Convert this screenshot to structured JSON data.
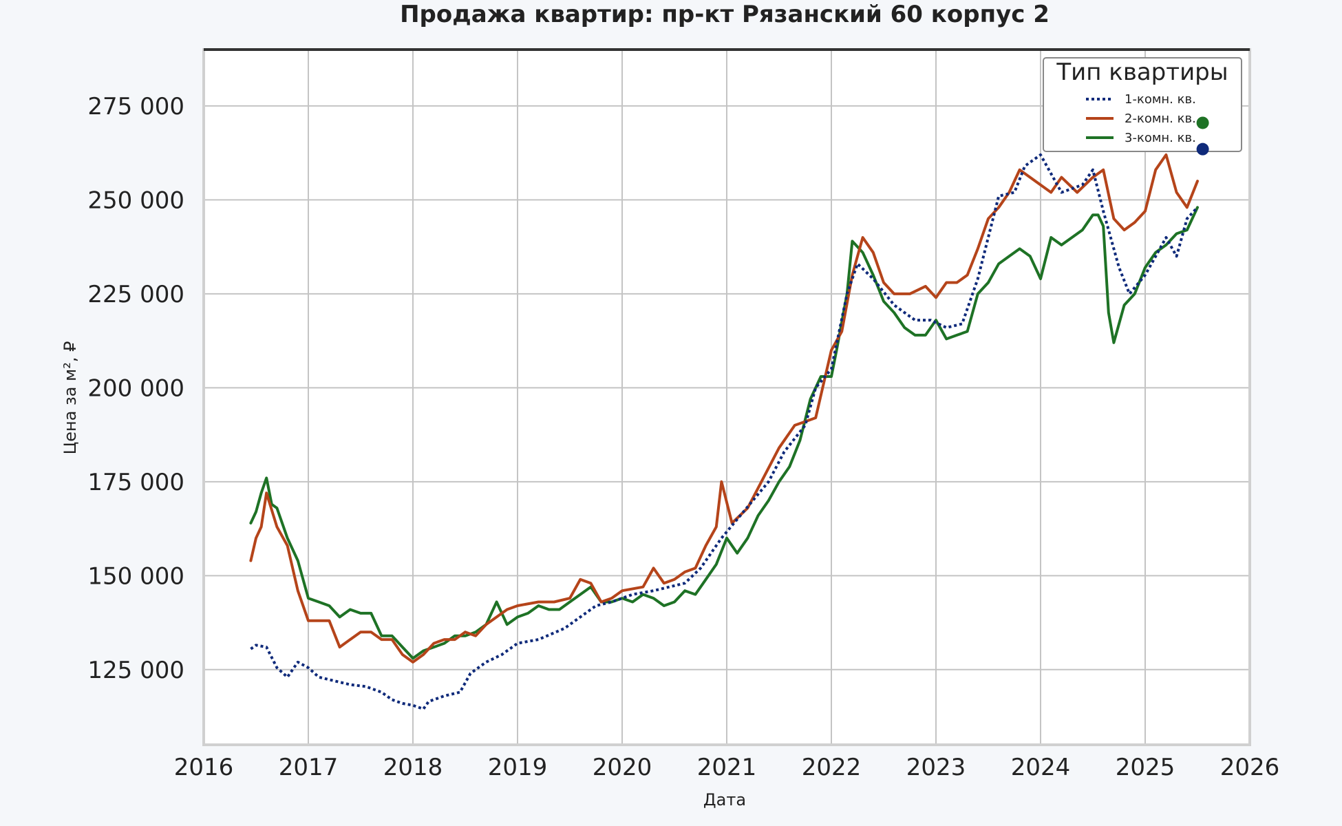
{
  "chart_data": {
    "type": "line",
    "title": "Продажа квартир: пр-кт Рязанский 60 корпус 2",
    "xlabel": "Дата",
    "ylabel": "Цена за м², ₽",
    "xlim": [
      2016,
      2026
    ],
    "ylim": [
      105000,
      290000
    ],
    "x_ticks": [
      "2016",
      "2017",
      "2018",
      "2019",
      "2020",
      "2021",
      "2022",
      "2023",
      "2024",
      "2025",
      "2026"
    ],
    "y_ticks": [
      "125 000",
      "150 000",
      "175 000",
      "200 000",
      "225 000",
      "250 000",
      "275 000"
    ],
    "grid": true,
    "legend": {
      "title": "Тип квартиры",
      "position": "top-right"
    },
    "series": [
      {
        "name": "1-комн. кв.",
        "color": "#0f2a7a",
        "style": "dotted",
        "x": [
          2016.45,
          2016.5,
          2016.6,
          2016.7,
          2016.8,
          2016.9,
          2017.0,
          2017.1,
          2017.25,
          2017.4,
          2017.55,
          2017.7,
          2017.8,
          2017.9,
          2018.0,
          2018.1,
          2018.15,
          2018.3,
          2018.45,
          2018.55,
          2018.7,
          2018.85,
          2019.0,
          2019.2,
          2019.45,
          2019.6,
          2019.75,
          2019.9,
          2020.1,
          2020.3,
          2020.45,
          2020.6,
          2020.75,
          2020.95,
          2021.1,
          2021.25,
          2021.4,
          2021.55,
          2021.75,
          2021.85,
          2022.0,
          2022.15,
          2022.25,
          2022.4,
          2022.6,
          2022.8,
          2022.95,
          2023.1,
          2023.25,
          2023.4,
          2023.6,
          2023.75,
          2023.85,
          2024.0,
          2024.2,
          2024.4,
          2024.5,
          2024.6,
          2024.75,
          2024.85,
          2025.0,
          2025.2,
          2025.3,
          2025.4,
          2025.5
        ],
        "y": [
          130500,
          131500,
          131000,
          125500,
          123000,
          127000,
          125500,
          123000,
          122000,
          121000,
          120500,
          119000,
          117000,
          116000,
          115500,
          114500,
          116500,
          118000,
          119000,
          124000,
          127000,
          129000,
          132000,
          133000,
          136000,
          139000,
          142000,
          143000,
          145000,
          146000,
          147000,
          148000,
          152000,
          160000,
          165000,
          170000,
          175000,
          183000,
          190000,
          200000,
          205000,
          225000,
          233000,
          229000,
          222000,
          218000,
          218000,
          216000,
          217000,
          229000,
          251000,
          252000,
          259000,
          262000,
          252000,
          254000,
          258000,
          247000,
          232000,
          225000,
          230000,
          240000,
          235000,
          245000,
          248000
        ]
      },
      {
        "name": "2-комн. кв.",
        "color": "#b5441a",
        "style": "solid",
        "x": [
          2016.45,
          2016.5,
          2016.55,
          2016.6,
          2016.7,
          2016.8,
          2016.9,
          2017.0,
          2017.2,
          2017.3,
          2017.4,
          2017.5,
          2017.6,
          2017.7,
          2017.8,
          2017.9,
          2018.0,
          2018.1,
          2018.2,
          2018.3,
          2018.4,
          2018.5,
          2018.6,
          2018.7,
          2018.8,
          2018.9,
          2019.0,
          2019.2,
          2019.35,
          2019.5,
          2019.6,
          2019.7,
          2019.8,
          2019.9,
          2020.0,
          2020.2,
          2020.3,
          2020.4,
          2020.5,
          2020.6,
          2020.7,
          2020.8,
          2020.9,
          2020.95,
          2021.05,
          2021.2,
          2021.35,
          2021.5,
          2021.65,
          2021.75,
          2021.85,
          2022.0,
          2022.1,
          2022.2,
          2022.3,
          2022.4,
          2022.5,
          2022.6,
          2022.75,
          2022.9,
          2023.0,
          2023.1,
          2023.2,
          2023.3,
          2023.4,
          2023.5,
          2023.6,
          2023.7,
          2023.8,
          2023.95,
          2024.1,
          2024.2,
          2024.35,
          2024.5,
          2024.6,
          2024.7,
          2024.8,
          2024.9,
          2025.0,
          2025.1,
          2025.2,
          2025.3,
          2025.4,
          2025.5
        ],
        "y": [
          154000,
          160000,
          163000,
          172000,
          163000,
          158000,
          146000,
          138000,
          138000,
          131000,
          133000,
          135000,
          135000,
          133000,
          133000,
          129000,
          127000,
          129000,
          132000,
          133000,
          133000,
          135000,
          134000,
          137000,
          139000,
          141000,
          142000,
          143000,
          143000,
          144000,
          149000,
          148000,
          143000,
          144000,
          146000,
          147000,
          152000,
          148000,
          149000,
          151000,
          152000,
          158000,
          163000,
          175000,
          164000,
          168000,
          176000,
          184000,
          190000,
          191000,
          192000,
          210000,
          215000,
          230000,
          240000,
          236000,
          228000,
          225000,
          225000,
          227000,
          224000,
          228000,
          228000,
          230000,
          237000,
          245000,
          248000,
          252000,
          258000,
          255000,
          252000,
          256000,
          252000,
          256000,
          258000,
          245000,
          242000,
          244000,
          247000,
          258000,
          262000,
          252000,
          248000,
          255000
        ]
      },
      {
        "name": "3-комн. кв.",
        "color": "#1e7225",
        "style": "solid",
        "x": [
          2016.45,
          2016.5,
          2016.55,
          2016.6,
          2016.65,
          2016.7,
          2016.8,
          2016.9,
          2017.0,
          2017.1,
          2017.2,
          2017.3,
          2017.4,
          2017.5,
          2017.6,
          2017.7,
          2017.8,
          2017.9,
          2018.0,
          2018.1,
          2018.2,
          2018.3,
          2018.4,
          2018.5,
          2018.6,
          2018.7,
          2018.8,
          2018.9,
          2019.0,
          2019.1,
          2019.2,
          2019.3,
          2019.4,
          2019.5,
          2019.6,
          2019.7,
          2019.8,
          2019.9,
          2020.0,
          2020.1,
          2020.2,
          2020.3,
          2020.4,
          2020.5,
          2020.6,
          2020.7,
          2020.8,
          2020.9,
          2021.0,
          2021.1,
          2021.2,
          2021.3,
          2021.4,
          2021.5,
          2021.6,
          2021.7,
          2021.8,
          2021.9,
          2022.0,
          2022.05,
          2022.15,
          2022.2,
          2022.3,
          2022.4,
          2022.5,
          2022.6,
          2022.7,
          2022.8,
          2022.9,
          2023.0,
          2023.1,
          2023.2,
          2023.3,
          2023.4,
          2023.5,
          2023.6,
          2023.7,
          2023.8,
          2023.9,
          2024.0,
          2024.1,
          2024.2,
          2024.3,
          2024.4,
          2024.5,
          2024.55,
          2024.6,
          2024.65,
          2024.7,
          2024.8,
          2024.9,
          2025.0,
          2025.1,
          2025.2,
          2025.3,
          2025.4,
          2025.5
        ],
        "y": [
          164000,
          167000,
          172000,
          176000,
          169000,
          168000,
          160000,
          154000,
          144000,
          143000,
          142000,
          139000,
          141000,
          140000,
          140000,
          134000,
          134000,
          131000,
          128000,
          130000,
          131000,
          132000,
          134000,
          134000,
          135000,
          137000,
          143000,
          137000,
          139000,
          140000,
          142000,
          141000,
          141000,
          143000,
          145000,
          147000,
          143000,
          143000,
          144000,
          143000,
          145000,
          144000,
          142000,
          143000,
          146000,
          145000,
          149000,
          153000,
          160000,
          156000,
          160000,
          166000,
          170000,
          175000,
          179000,
          186000,
          197000,
          203000,
          203000,
          210000,
          225000,
          239000,
          236000,
          230000,
          223000,
          220000,
          216000,
          214000,
          214000,
          218000,
          213000,
          214000,
          215000,
          225000,
          228000,
          233000,
          235000,
          237000,
          235000,
          229000,
          240000,
          238000,
          240000,
          242000,
          246000,
          246000,
          243000,
          220000,
          212000,
          222000,
          225000,
          232000,
          236000,
          238000,
          241000,
          242000,
          248000
        ]
      }
    ],
    "end_markers": [
      {
        "series": "3-комн. кв.",
        "x": 2025.55,
        "y": 270500,
        "color": "#1e7225"
      },
      {
        "series": "1-комн. кв.",
        "x": 2025.55,
        "y": 263500,
        "color": "#0f2a7a"
      }
    ]
  }
}
